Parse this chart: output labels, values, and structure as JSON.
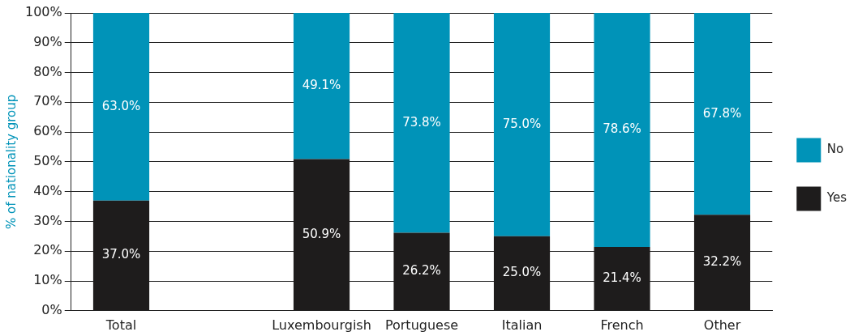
{
  "chart_data": {
    "type": "bar",
    "stacked": true,
    "ylabel": "% of nationality group",
    "categories": [
      "Total",
      null,
      "Luxembourgish",
      "Portuguese",
      "Italian",
      "French",
      "Other"
    ],
    "series": [
      {
        "name": "Yes",
        "color": "#1e1c1c",
        "values": [
          37.0,
          null,
          50.9,
          26.2,
          25.0,
          21.4,
          32.2
        ],
        "value_labels": [
          "37.0%",
          null,
          "50.9%",
          "26.2%",
          "25.0%",
          "21.4%",
          "32.2%"
        ]
      },
      {
        "name": "No",
        "color": "#0093b8",
        "values": [
          63.0,
          null,
          49.1,
          73.8,
          75.0,
          78.6,
          67.8
        ],
        "value_labels": [
          "63.0%",
          null,
          "49.1%",
          "73.8%",
          "75.0%",
          "78.6%",
          "67.8%"
        ]
      }
    ],
    "ylim": [
      0,
      100
    ],
    "yticks": [
      {
        "value": 0,
        "label": "0%"
      },
      {
        "value": 10,
        "label": "10%"
      },
      {
        "value": 20,
        "label": "20%"
      },
      {
        "value": 30,
        "label": "30%"
      },
      {
        "value": 40,
        "label": "40%"
      },
      {
        "value": 50,
        "label": "50%"
      },
      {
        "value": 60,
        "label": "60%"
      },
      {
        "value": 70,
        "label": "70%"
      },
      {
        "value": 80,
        "label": "80%"
      },
      {
        "value": 90,
        "label": "90%"
      },
      {
        "value": 100,
        "label": "100%"
      }
    ],
    "grid": "y",
    "legend": "right"
  }
}
